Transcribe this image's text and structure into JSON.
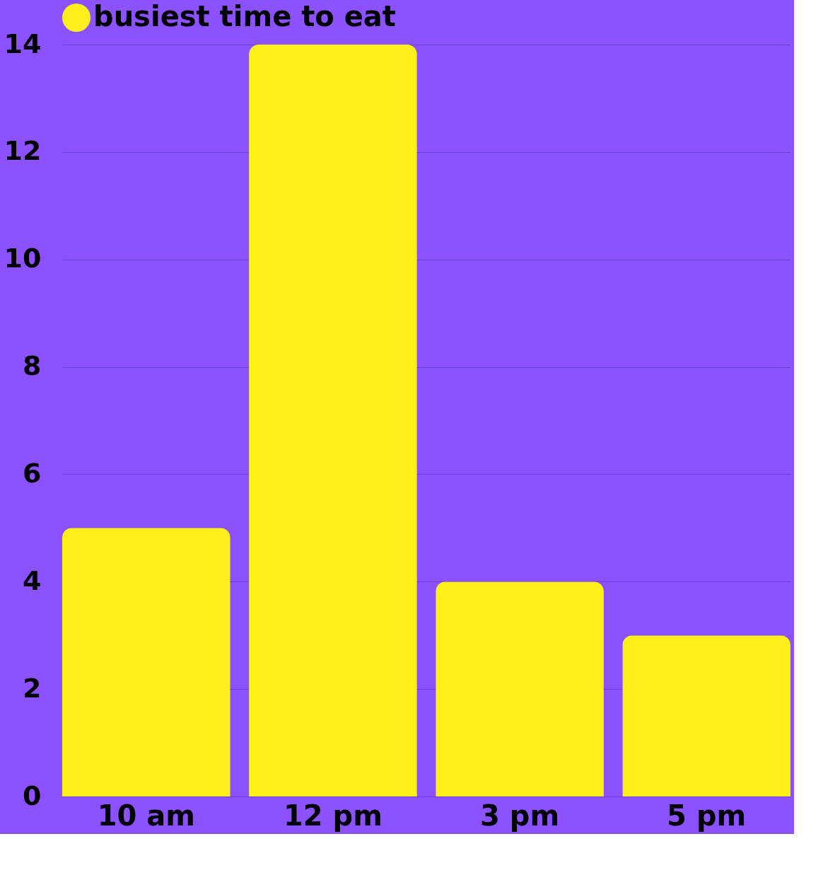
{
  "chart_data": {
    "type": "bar",
    "categories": [
      "10 am",
      "12 pm",
      "3 pm",
      "5 pm"
    ],
    "series": [
      {
        "name": "busiest time to eat",
        "color": "#fff01c",
        "values": [
          5,
          14,
          4,
          3
        ]
      }
    ],
    "ylim": [
      0,
      14
    ],
    "yticks": [
      0,
      2,
      4,
      6,
      8,
      10,
      12,
      14
    ],
    "grid": "y",
    "legend": "top"
  }
}
